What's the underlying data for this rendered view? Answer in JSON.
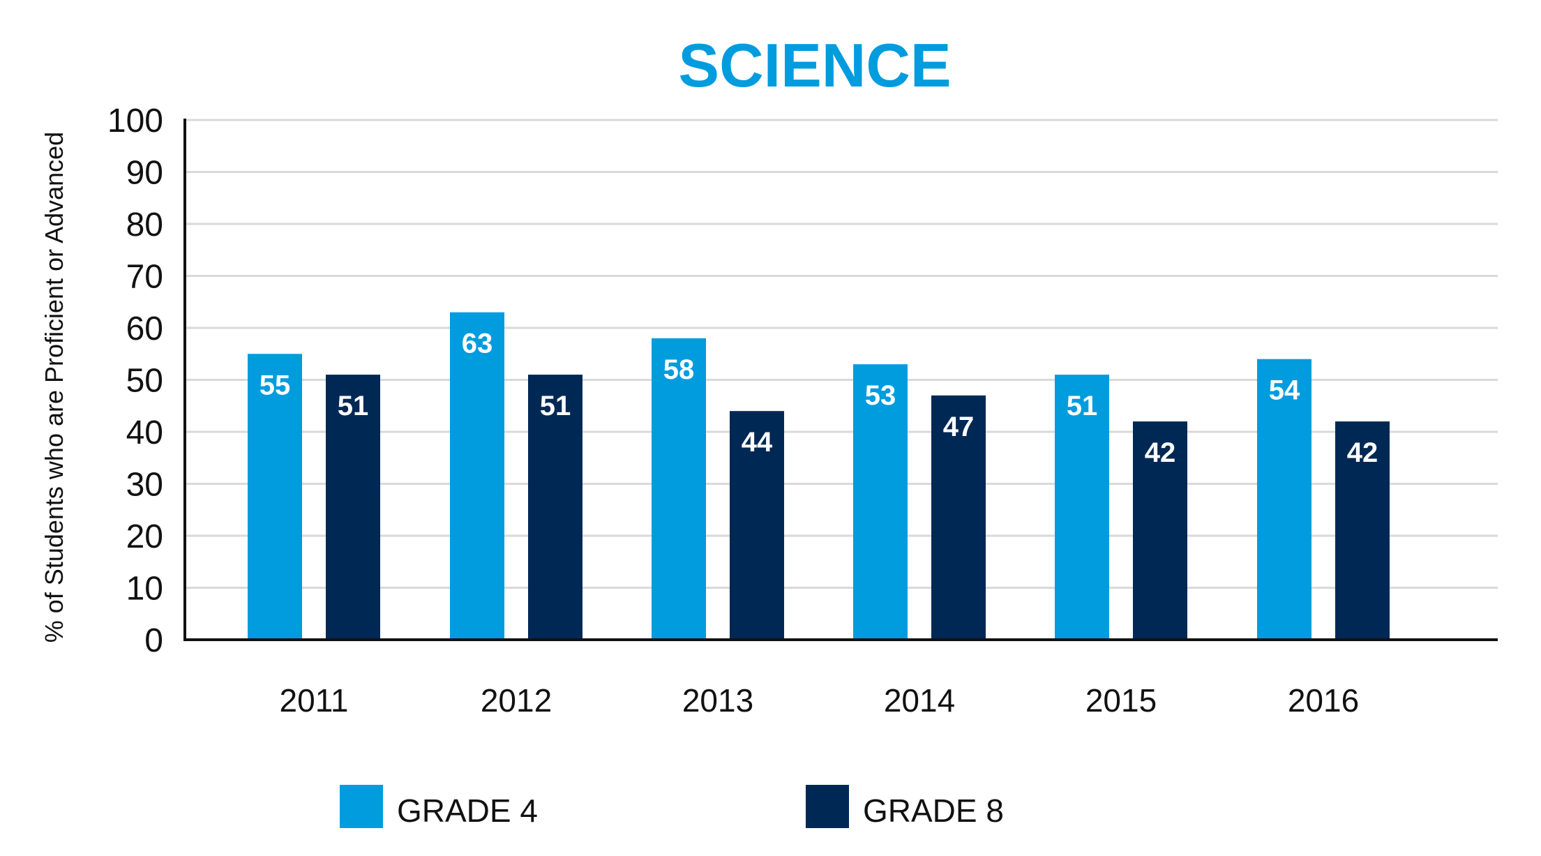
{
  "chart_data": {
    "type": "bar",
    "title": "SCIENCE",
    "ylabel": "% of Students who are Proficient or Advanced",
    "xlabel": "",
    "categories": [
      "2011",
      "2012",
      "2013",
      "2014",
      "2015",
      "2016"
    ],
    "series": [
      {
        "name": "GRADE 4",
        "color": "#009cde",
        "values": [
          55,
          63,
          58,
          53,
          51,
          54
        ]
      },
      {
        "name": "GRADE 8",
        "color": "#002855",
        "values": [
          51,
          51,
          44,
          47,
          42,
          42
        ]
      }
    ],
    "ylim": [
      0,
      100
    ],
    "yticks": [
      "0",
      "10",
      "20",
      "30",
      "40",
      "50",
      "60",
      "70",
      "80",
      "90",
      "100"
    ],
    "grid": true,
    "legend_position": "bottom",
    "colors": {
      "title": "#009cde",
      "grid": "#d9d9d9",
      "axis": "#111111"
    }
  }
}
